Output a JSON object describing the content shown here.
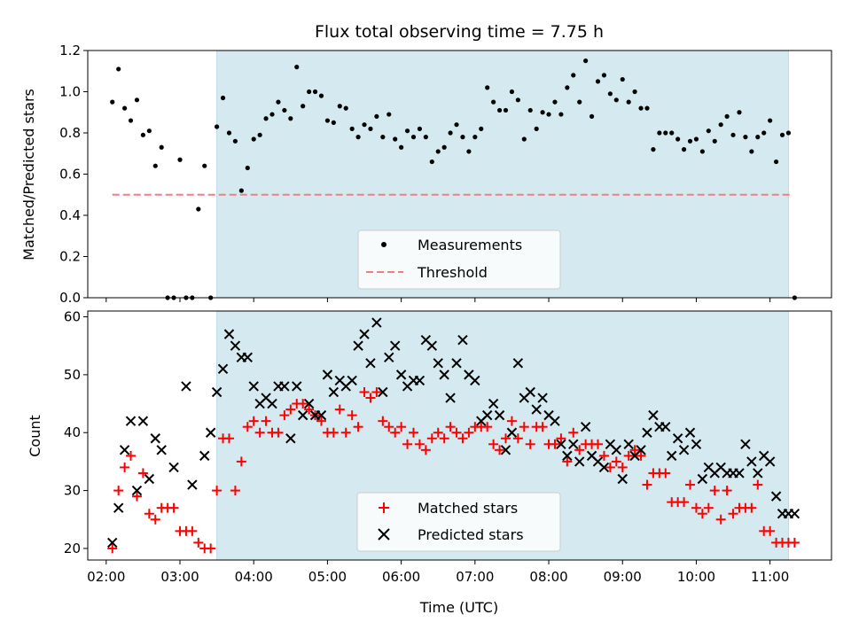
{
  "chart_data": [
    {
      "type": "scatter",
      "title": "Flux total observing time = 7.75 h",
      "ylabel": "Matched/Predicted stars",
      "xlim": [
        "01:45",
        "11:50"
      ],
      "ylim": [
        0,
        1.2
      ],
      "yticks": [
        "0.0",
        "0.2",
        "0.4",
        "0.6",
        "0.8",
        "1.0",
        "1.2"
      ],
      "shaded_region": {
        "start": "03:30",
        "end": "11:15",
        "color": "#d4eaf0"
      },
      "legend_position": "lower center",
      "series": [
        {
          "name": "Measurements",
          "color": "#000000",
          "marker": "dot",
          "x": [
            "02:05",
            "02:10",
            "02:15",
            "02:20",
            "02:25",
            "02:30",
            "02:35",
            "02:40",
            "02:45",
            "02:50",
            "02:55",
            "03:00",
            "03:05",
            "03:10",
            "03:15",
            "03:20",
            "03:25",
            "03:30",
            "03:35",
            "03:40",
            "03:45",
            "03:50",
            "03:55",
            "04:00",
            "04:05",
            "04:10",
            "04:15",
            "04:20",
            "04:25",
            "04:30",
            "04:35",
            "04:40",
            "04:45",
            "04:50",
            "04:55",
            "05:00",
            "05:05",
            "05:10",
            "05:15",
            "05:20",
            "05:25",
            "05:30",
            "05:35",
            "05:40",
            "05:45",
            "05:50",
            "05:55",
            "06:00",
            "06:05",
            "06:10",
            "06:15",
            "06:20",
            "06:25",
            "06:30",
            "06:35",
            "06:40",
            "06:45",
            "06:50",
            "06:55",
            "07:00",
            "07:05",
            "07:10",
            "07:15",
            "07:20",
            "07:25",
            "07:30",
            "07:35",
            "07:40",
            "07:45",
            "07:50",
            "07:55",
            "08:00",
            "08:05",
            "08:10",
            "08:15",
            "08:20",
            "08:25",
            "08:30",
            "08:35",
            "08:40",
            "08:45",
            "08:50",
            "08:55",
            "09:00",
            "09:05",
            "09:10",
            "09:15",
            "09:20",
            "09:25",
            "09:30",
            "09:35",
            "09:40",
            "09:45",
            "09:50",
            "09:55",
            "10:00",
            "10:05",
            "10:10",
            "10:15",
            "10:20",
            "10:25",
            "10:30",
            "10:35",
            "10:40",
            "10:45",
            "10:50",
            "10:55",
            "11:00",
            "11:05",
            "11:10",
            "11:15",
            "11:20"
          ],
          "y": [
            0.95,
            1.11,
            0.92,
            0.86,
            0.96,
            0.79,
            0.81,
            0.64,
            0.73,
            0.0,
            0.0,
            0.67,
            0.0,
            0.0,
            0.43,
            0.64,
            0.0,
            0.83,
            0.97,
            0.8,
            0.76,
            0.52,
            0.63,
            0.77,
            0.79,
            0.87,
            0.89,
            0.95,
            0.91,
            0.87,
            1.12,
            0.93,
            1.0,
            1.0,
            0.98,
            0.86,
            0.85,
            0.93,
            0.92,
            0.82,
            0.78,
            0.84,
            0.82,
            0.88,
            0.78,
            0.89,
            0.77,
            0.73,
            0.81,
            0.78,
            0.82,
            0.78,
            0.66,
            0.71,
            0.73,
            0.8,
            0.84,
            0.78,
            0.71,
            0.78,
            0.82,
            1.02,
            0.95,
            0.91,
            0.91,
            1.0,
            0.96,
            0.77,
            0.91,
            0.82,
            0.9,
            0.89,
            0.95,
            0.89,
            1.02,
            1.08,
            0.95,
            1.15,
            0.88,
            1.05,
            1.08,
            0.99,
            0.96,
            1.06,
            0.95,
            1.0,
            0.92,
            0.92,
            0.72,
            0.8,
            0.8,
            0.8,
            0.77,
            0.72,
            0.76,
            0.77,
            0.71,
            0.81,
            0.76,
            0.84,
            0.88,
            0.79,
            0.9,
            0.78,
            0.71,
            0.78,
            0.8,
            0.86,
            0.66,
            0.79,
            0.8,
            0.0
          ]
        },
        {
          "name": "Threshold",
          "color": "#f08080",
          "style": "dashed",
          "x": [
            "02:05",
            "11:17"
          ],
          "y": [
            0.5,
            0.5
          ]
        }
      ]
    },
    {
      "type": "scatter",
      "xlabel": "Time (UTC)",
      "ylabel": "Count",
      "xlim": [
        "01:45",
        "11:50"
      ],
      "ylim": [
        18,
        61
      ],
      "yticks": [
        "20",
        "30",
        "40",
        "50",
        "60"
      ],
      "xticks": [
        "02:00",
        "03:00",
        "04:00",
        "05:00",
        "06:00",
        "07:00",
        "08:00",
        "09:00",
        "10:00",
        "11:00"
      ],
      "shaded_region": {
        "start": "03:30",
        "end": "11:15",
        "color": "#d4eaf0"
      },
      "legend_position": "lower center",
      "series": [
        {
          "name": "Matched stars",
          "color": "#ff0000",
          "marker": "plus",
          "x": [
            "02:05",
            "02:10",
            "02:15",
            "02:20",
            "02:25",
            "02:30",
            "02:35",
            "02:40",
            "02:45",
            "02:50",
            "02:55",
            "03:00",
            "03:05",
            "03:10",
            "03:15",
            "03:20",
            "03:25",
            "03:30",
            "03:35",
            "03:40",
            "03:45",
            "03:50",
            "03:55",
            "04:00",
            "04:05",
            "04:10",
            "04:15",
            "04:20",
            "04:25",
            "04:30",
            "04:35",
            "04:40",
            "04:45",
            "04:50",
            "04:55",
            "05:00",
            "05:05",
            "05:10",
            "05:15",
            "05:20",
            "05:25",
            "05:30",
            "05:35",
            "05:40",
            "05:45",
            "05:50",
            "05:55",
            "06:00",
            "06:05",
            "06:10",
            "06:15",
            "06:20",
            "06:25",
            "06:30",
            "06:35",
            "06:40",
            "06:45",
            "06:50",
            "06:55",
            "07:00",
            "07:05",
            "07:10",
            "07:15",
            "07:20",
            "07:25",
            "07:30",
            "07:35",
            "07:40",
            "07:45",
            "07:50",
            "07:55",
            "08:00",
            "08:05",
            "08:10",
            "08:15",
            "08:20",
            "08:25",
            "08:30",
            "08:35",
            "08:40",
            "08:45",
            "08:50",
            "08:55",
            "09:00",
            "09:05",
            "09:10",
            "09:15",
            "09:20",
            "09:25",
            "09:30",
            "09:35",
            "09:40",
            "09:45",
            "09:50",
            "09:55",
            "10:00",
            "10:05",
            "10:10",
            "10:15",
            "10:20",
            "10:25",
            "10:30",
            "10:35",
            "10:40",
            "10:45",
            "10:50",
            "10:55",
            "11:00",
            "11:05",
            "11:10",
            "11:15",
            "11:20"
          ],
          "y": [
            20,
            30,
            34,
            36,
            29,
            33,
            26,
            25,
            27,
            27,
            27,
            23,
            23,
            23,
            21,
            20,
            20,
            30,
            39,
            39,
            30,
            35,
            41,
            42,
            40,
            42,
            40,
            40,
            43,
            44,
            45,
            45,
            44,
            43,
            42,
            40,
            40,
            44,
            40,
            43,
            41,
            47,
            46,
            47,
            42,
            41,
            40,
            41,
            38,
            40,
            38,
            37,
            39,
            40,
            39,
            41,
            40,
            39,
            40,
            41,
            41,
            41,
            38,
            37,
            39,
            42,
            39,
            41,
            38,
            41,
            41,
            38,
            38,
            39,
            35,
            40,
            37,
            38,
            38,
            38,
            36,
            34,
            35,
            34,
            36,
            37,
            36,
            31,
            33,
            33,
            33,
            28,
            28,
            28,
            31,
            27,
            26,
            27,
            30,
            25,
            30,
            26,
            27,
            27,
            27,
            31,
            23,
            23,
            21,
            21,
            21,
            21
          ]
        },
        {
          "name": "Predicted stars",
          "color": "#000000",
          "marker": "x",
          "x": [
            "02:05",
            "02:10",
            "02:15",
            "02:20",
            "02:25",
            "02:30",
            "02:35",
            "02:40",
            "02:45",
            "02:50",
            "02:55",
            "03:00",
            "03:05",
            "03:10",
            "03:15",
            "03:20",
            "03:25",
            "03:30",
            "03:35",
            "03:40",
            "03:45",
            "03:50",
            "03:55",
            "04:00",
            "04:05",
            "04:10",
            "04:15",
            "04:20",
            "04:25",
            "04:30",
            "04:35",
            "04:40",
            "04:45",
            "04:50",
            "04:55",
            "05:00",
            "05:05",
            "05:10",
            "05:15",
            "05:20",
            "05:25",
            "05:30",
            "05:35",
            "05:40",
            "05:45",
            "05:50",
            "05:55",
            "06:00",
            "06:05",
            "06:10",
            "06:15",
            "06:20",
            "06:25",
            "06:30",
            "06:35",
            "06:40",
            "06:45",
            "06:50",
            "06:55",
            "07:00",
            "07:05",
            "07:10",
            "07:15",
            "07:20",
            "07:25",
            "07:30",
            "07:35",
            "07:40",
            "07:45",
            "07:50",
            "07:55",
            "08:00",
            "08:05",
            "08:10",
            "08:15",
            "08:20",
            "08:25",
            "08:30",
            "08:35",
            "08:40",
            "08:45",
            "08:50",
            "08:55",
            "09:00",
            "09:05",
            "09:10",
            "09:15",
            "09:20",
            "09:25",
            "09:30",
            "09:35",
            "09:40",
            "09:45",
            "09:50",
            "09:55",
            "10:00",
            "10:05",
            "10:10",
            "10:15",
            "10:20",
            "10:25",
            "10:30",
            "10:35",
            "10:40",
            "10:45",
            "10:50",
            "10:55",
            "11:00",
            "11:05",
            "11:10",
            "11:15",
            "11:20"
          ],
          "y": [
            21,
            27,
            37,
            42,
            30,
            42,
            32,
            39,
            37,
            null,
            34,
            null,
            48,
            31,
            null,
            36,
            40,
            47,
            51,
            57,
            55,
            53,
            53,
            48,
            45,
            46,
            45,
            48,
            48,
            39,
            48,
            43,
            45,
            43,
            43,
            50,
            47,
            49,
            48,
            49,
            55,
            57,
            52,
            59,
            47,
            53,
            55,
            50,
            48,
            49,
            49,
            56,
            55,
            52,
            50,
            46,
            52,
            56,
            50,
            49,
            42,
            43,
            45,
            43,
            37,
            40,
            52,
            46,
            47,
            44,
            46,
            43,
            42,
            38,
            36,
            38,
            35,
            41,
            36,
            35,
            34,
            38,
            37,
            32,
            38,
            36,
            37,
            40,
            43,
            41,
            41,
            36,
            39,
            37,
            40,
            38,
            32,
            34,
            33,
            34,
            33,
            33,
            33,
            38,
            35,
            33,
            36,
            35,
            29,
            26,
            26,
            26
          ]
        }
      ]
    }
  ]
}
